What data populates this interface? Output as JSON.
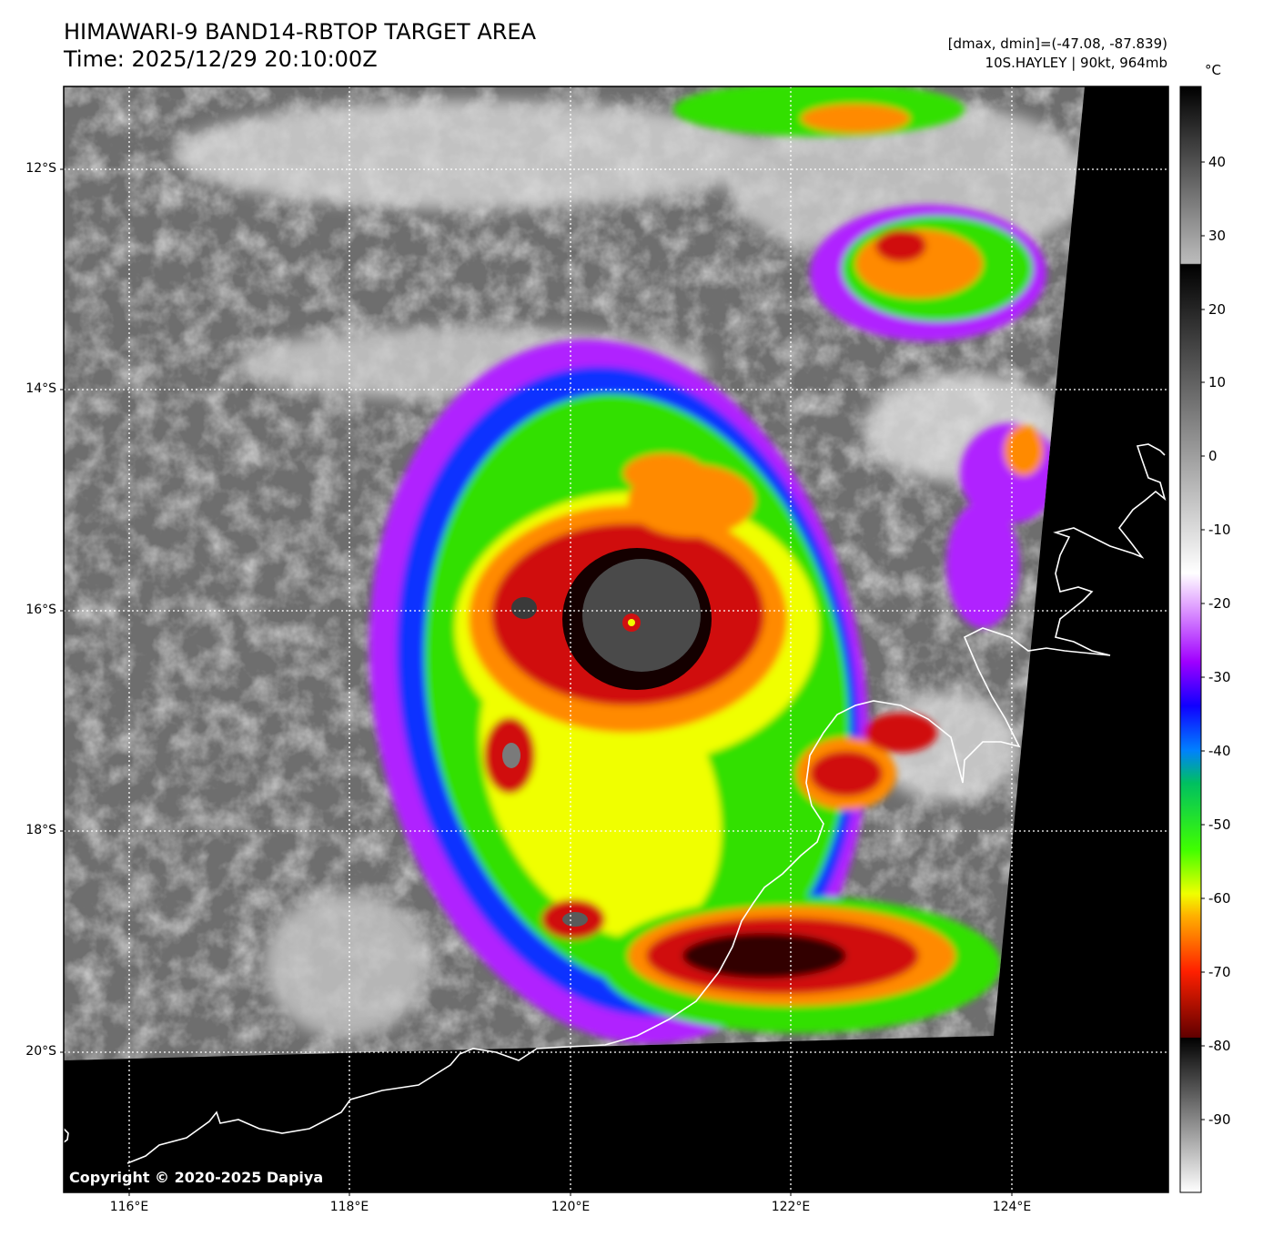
{
  "header": {
    "title_line1": "HIMAWARI-9 BAND14-RBTOP TARGET AREA",
    "title_line2": "Time: 2025/12/29 20:10:00Z",
    "meta_line1": "[dmax, dmin]=(-47.08, -87.839)",
    "meta_line2": "10S.HAYLEY | 90kt, 964mb"
  },
  "axes": {
    "lat_labels": [
      "12°S",
      "14°S",
      "16°S",
      "18°S",
      "20°S"
    ],
    "lon_labels": [
      "116°E",
      "118°E",
      "120°E",
      "122°E",
      "124°E"
    ],
    "lat_range": [
      -21.2,
      -11.25
    ],
    "lon_range": [
      115.4,
      125.35
    ],
    "grid": "dotted-white"
  },
  "colorbar": {
    "unit": "°C",
    "ticks": [
      "40",
      "30",
      "20",
      "10",
      "0",
      "-10",
      "-20",
      "-30",
      "-40",
      "-50",
      "-60",
      "-70",
      "-80",
      "-90"
    ],
    "range": [
      -100,
      50
    ]
  },
  "storm": {
    "name": "10S.HAYLEY",
    "wind_kt": 90,
    "pressure_mb": 964,
    "eye_lat": -16.1,
    "eye_lon": 120.55
  },
  "colors": {
    "cold_red": "#d01010",
    "black_core": "#140000",
    "orange": "#ff8a00",
    "yellow": "#f0ff00",
    "green": "#30e000",
    "blue": "#1030ff",
    "purple": "#b020ff",
    "cloud_gray": "#9a9a9a",
    "no_data": "#000000"
  },
  "footer": {
    "copyright": "Copyright © 2020-2025 Dapiya"
  }
}
